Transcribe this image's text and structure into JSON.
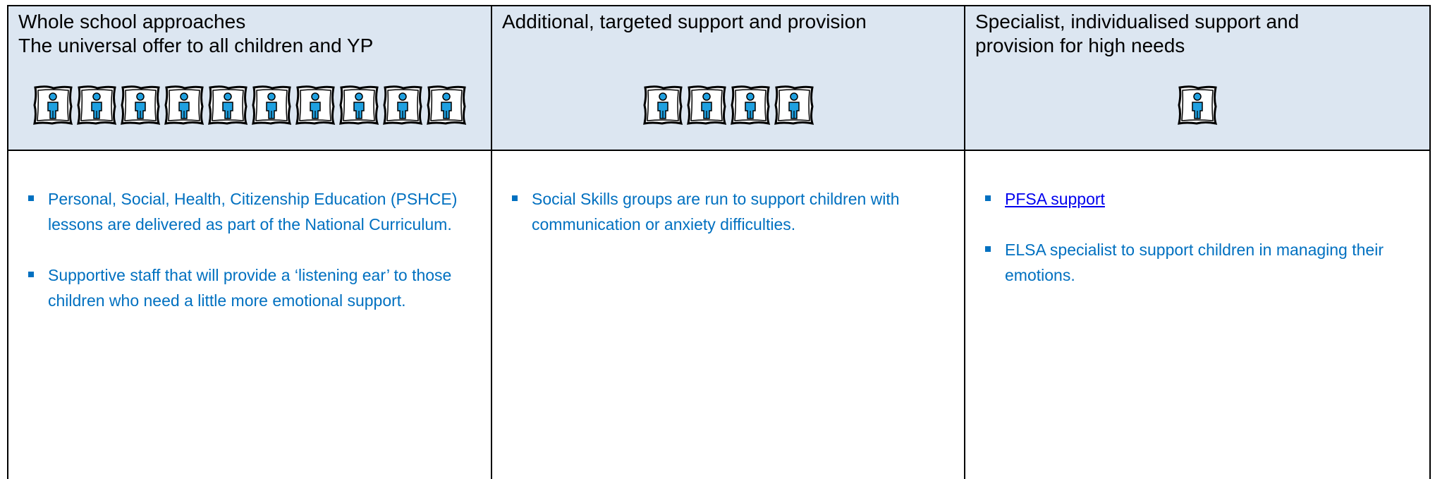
{
  "columns": [
    {
      "title": [
        "Whole school approaches",
        "The universal offer to all children and YP"
      ],
      "items": [
        "Personal, Social, Health, Citizenship Education (PSHCE) lessons are delivered as part of the National Curriculum.",
        "Supportive staff that will provide a ‘listening ear’ to those children who need a little more emotional support."
      ]
    },
    {
      "title": [
        "Additional, targeted support and provision"
      ],
      "items": [
        "Social Skills groups are run to support children with communication or anxiety difficulties."
      ]
    },
    {
      "title": [
        "Specialist, individualised support and provision for high needs"
      ],
      "items": [
        "PFSA support",
        "ELSA specialist to support children in managing their emotions."
      ]
    }
  ]
}
